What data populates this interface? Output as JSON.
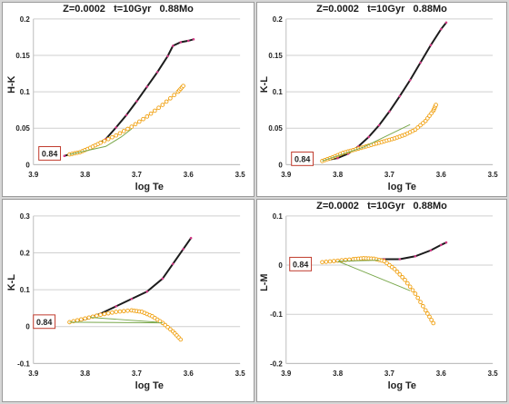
{
  "colors": {
    "black_track": "#1c1c1c",
    "magenta_points": "#d13a86",
    "orange_track": "#f0a010",
    "green_line": "#7aa84c",
    "label_box": "#c0392b"
  },
  "chart_data": [
    {
      "type": "line",
      "title": "Z=0.0002   t=10Gyr   0.88Mo",
      "xlabel": "log Te",
      "ylabel": "H-K",
      "xlim": [
        3.9,
        3.5
      ],
      "ylim": [
        0,
        0.2
      ],
      "xticks": [
        "3.9",
        "3.8",
        "3.7",
        "3.6",
        "3.5"
      ],
      "yticks": [
        "0",
        "0.05",
        "0.1",
        "0.15",
        "0.2"
      ],
      "box_label": "0.84",
      "series": [
        {
          "style": "black",
          "x": [
            3.84,
            3.82,
            3.79,
            3.76,
            3.74,
            3.72,
            3.7,
            3.68,
            3.66,
            3.64,
            3.63,
            3.615,
            3.6,
            3.59
          ],
          "y": [
            0.012,
            0.016,
            0.022,
            0.035,
            0.051,
            0.068,
            0.087,
            0.107,
            0.127,
            0.149,
            0.163,
            0.168,
            0.17,
            0.172
          ]
        },
        {
          "style": "orange",
          "x": [
            3.83,
            3.81,
            3.79,
            3.77,
            3.74,
            3.71,
            3.68,
            3.65,
            3.62,
            3.61
          ],
          "y": [
            0.014,
            0.017,
            0.023,
            0.03,
            0.04,
            0.052,
            0.066,
            0.082,
            0.1,
            0.108
          ]
        },
        {
          "style": "green",
          "x": [
            3.83,
            3.76,
            3.73,
            3.71
          ],
          "y": [
            0.014,
            0.025,
            0.038,
            0.049
          ]
        }
      ]
    },
    {
      "type": "line",
      "title": "Z=0.0002   t=10Gyr   0.88Mo",
      "xlabel": "log Te",
      "ylabel": "K-L",
      "xlim": [
        3.9,
        3.5
      ],
      "ylim": [
        0,
        0.2
      ],
      "xticks": [
        "3.9",
        "3.8",
        "3.7",
        "3.6",
        "3.5"
      ],
      "yticks": [
        "0",
        "0.05",
        "0.1",
        "0.15",
        "0.2"
      ],
      "box_label": "0.84",
      "series": [
        {
          "style": "black",
          "x": [
            3.83,
            3.8,
            3.78,
            3.76,
            3.74,
            3.72,
            3.7,
            3.68,
            3.66,
            3.64,
            3.62,
            3.6,
            3.59
          ],
          "y": [
            0.005,
            0.009,
            0.015,
            0.025,
            0.038,
            0.054,
            0.073,
            0.094,
            0.116,
            0.14,
            0.164,
            0.186,
            0.195
          ]
        },
        {
          "style": "orange",
          "x": [
            3.83,
            3.81,
            3.79,
            3.77,
            3.75,
            3.73,
            3.71,
            3.69,
            3.67,
            3.65,
            3.63,
            3.615,
            3.61
          ],
          "y": [
            0.005,
            0.01,
            0.016,
            0.02,
            0.024,
            0.028,
            0.032,
            0.036,
            0.041,
            0.048,
            0.06,
            0.074,
            0.082
          ]
        },
        {
          "style": "green",
          "x": [
            3.83,
            3.75,
            3.66
          ],
          "y": [
            0.005,
            0.024,
            0.055
          ]
        }
      ]
    },
    {
      "type": "line",
      "title": "",
      "xlabel": "log Te",
      "ylabel": "K-L",
      "xlim": [
        3.9,
        3.5
      ],
      "ylim": [
        -0.1,
        0.3
      ],
      "xticks": [
        "3.9",
        "3.8",
        "3.7",
        "3.6",
        "3.5"
      ],
      "yticks": [
        "-0.1",
        "0",
        "0.1",
        "0.2",
        "0.3"
      ],
      "box_label": "0.84",
      "series": [
        {
          "style": "black",
          "x": [
            3.83,
            3.8,
            3.77,
            3.74,
            3.71,
            3.68,
            3.65,
            3.63,
            3.61,
            3.595
          ],
          "y": [
            0.012,
            0.02,
            0.035,
            0.055,
            0.075,
            0.095,
            0.13,
            0.17,
            0.21,
            0.24
          ]
        },
        {
          "style": "orange",
          "x": [
            3.83,
            3.8,
            3.77,
            3.74,
            3.71,
            3.69,
            3.67,
            3.65,
            3.63,
            3.615
          ],
          "y": [
            0.012,
            0.022,
            0.032,
            0.04,
            0.044,
            0.04,
            0.028,
            0.01,
            -0.013,
            -0.035
          ]
        },
        {
          "style": "green",
          "x": [
            3.83,
            3.65
          ],
          "y": [
            0.012,
            0.01
          ]
        },
        {
          "style": "green",
          "x": [
            3.79,
            3.66
          ],
          "y": [
            0.025,
            0.012
          ]
        }
      ]
    },
    {
      "type": "line",
      "title": "Z=0.0002   t=10Gyr   0.88Mo",
      "xlabel": "log Te",
      "ylabel": "L-M",
      "xlim": [
        3.9,
        3.5
      ],
      "ylim": [
        -0.2,
        0.1
      ],
      "xticks": [
        "3.9",
        "3.8",
        "3.7",
        "3.6",
        "3.5"
      ],
      "yticks": [
        "-0.2",
        "-0.1",
        "0",
        "0.1"
      ],
      "box_label": "0.84",
      "series": [
        {
          "style": "black",
          "x": [
            3.83,
            3.8,
            3.77,
            3.74,
            3.71,
            3.68,
            3.65,
            3.62,
            3.6,
            3.59
          ],
          "y": [
            0.006,
            0.008,
            0.01,
            0.011,
            0.012,
            0.012,
            0.018,
            0.03,
            0.041,
            0.046
          ]
        },
        {
          "style": "orange",
          "x": [
            3.83,
            3.8,
            3.77,
            3.75,
            3.73,
            3.71,
            3.69,
            3.67,
            3.65,
            3.63,
            3.615
          ],
          "y": [
            0.006,
            0.009,
            0.012,
            0.014,
            0.013,
            0.008,
            -0.008,
            -0.03,
            -0.058,
            -0.092,
            -0.118
          ]
        },
        {
          "style": "green",
          "x": [
            3.8,
            3.66
          ],
          "y": [
            0.008,
            -0.052
          ]
        },
        {
          "style": "green",
          "x": [
            3.8,
            3.72
          ],
          "y": [
            0.008,
            0.01
          ]
        }
      ]
    }
  ]
}
